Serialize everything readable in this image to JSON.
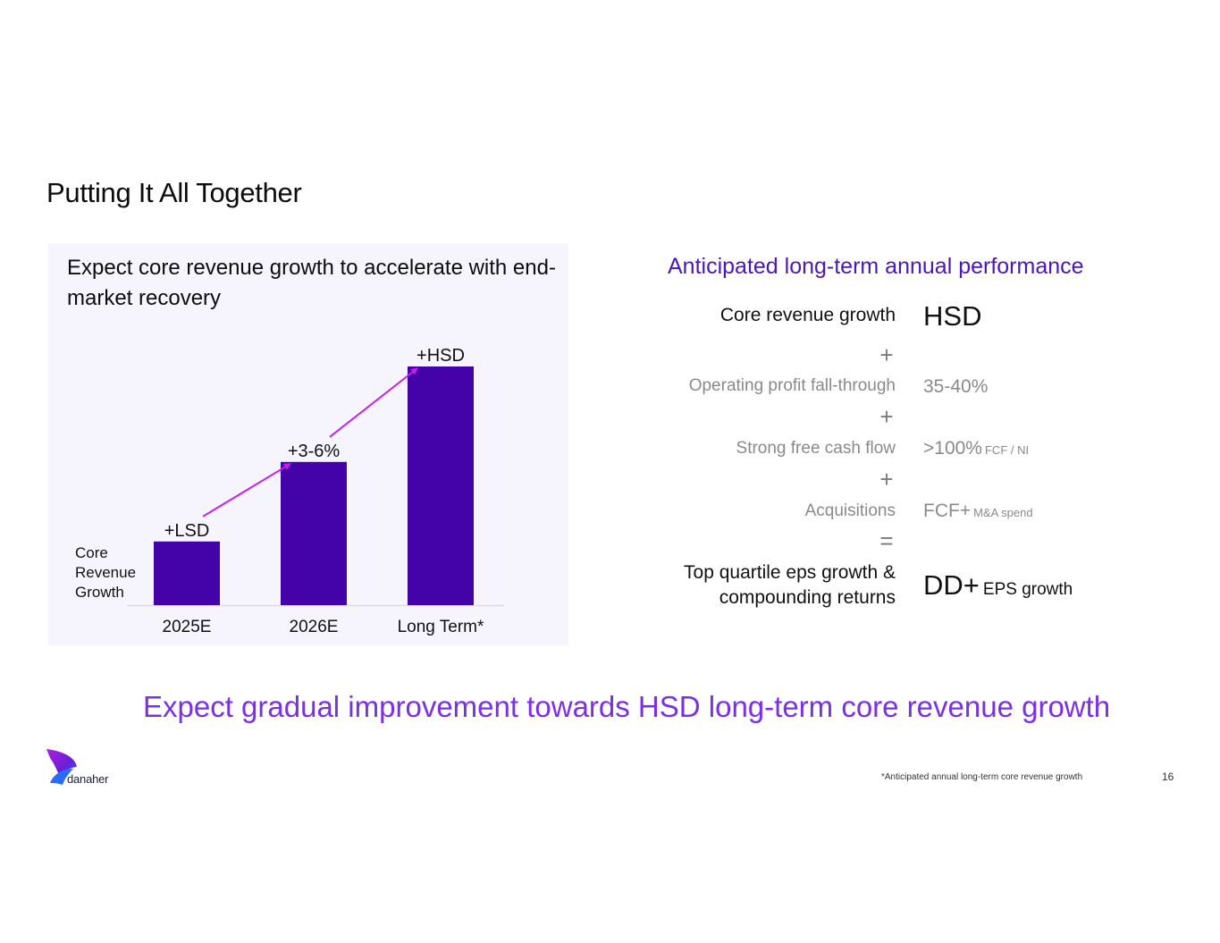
{
  "slide": {
    "title": "Putting It All Together",
    "page_number": "16",
    "footnote": "*Anticipated annual long-term core revenue growth",
    "tagline": "Expect gradual improvement towards HSD long-term core revenue growth",
    "brand": {
      "name": "danaher",
      "logo": "danaher-logo-icon"
    }
  },
  "left_panel": {
    "heading": "Expect core revenue growth to accelerate with end-market recovery"
  },
  "chart_data": {
    "type": "bar",
    "title": "Expect core revenue growth to accelerate with end-market recovery",
    "ylabel_lines": [
      "Core",
      "Revenue",
      "Growth"
    ],
    "categories": [
      "2025E",
      "2026E",
      "Long Term*"
    ],
    "values": [
      2,
      4.5,
      7.5
    ],
    "value_unit": "approximate % (qualitative scale)",
    "data_labels": [
      "+LSD",
      "+3-6%",
      "+HSD"
    ],
    "ylim": [
      0,
      7.5
    ],
    "grid": false,
    "legend": "none",
    "colors": {
      "bar": "#4303a8",
      "arrow": "#c81ee6",
      "baseline": "#dcdcea"
    }
  },
  "right_panel": {
    "title": "Anticipated long-term annual performance",
    "rows": [
      {
        "label": "Core revenue growth",
        "value": "HSD"
      },
      {
        "label": "Operating profit fall-through",
        "value": "35-40%"
      },
      {
        "label": "Strong free cash flow",
        "value": ">100%",
        "sub": "FCF / NI"
      },
      {
        "label": "Acquisitions",
        "value": "FCF+",
        "sub": "M&A spend"
      },
      {
        "label_line1": "Top quartile eps growth &",
        "label_line2": "compounding returns",
        "value": "DD+",
        "sub": "EPS growth"
      }
    ],
    "operators": [
      "+",
      "+",
      "+",
      "="
    ]
  },
  "colors": {
    "accent": "#4b17b7",
    "tagline": "#7b2fe6",
    "panel_bg": "#f6f4fc",
    "muted_text": "#8a8a8a"
  }
}
